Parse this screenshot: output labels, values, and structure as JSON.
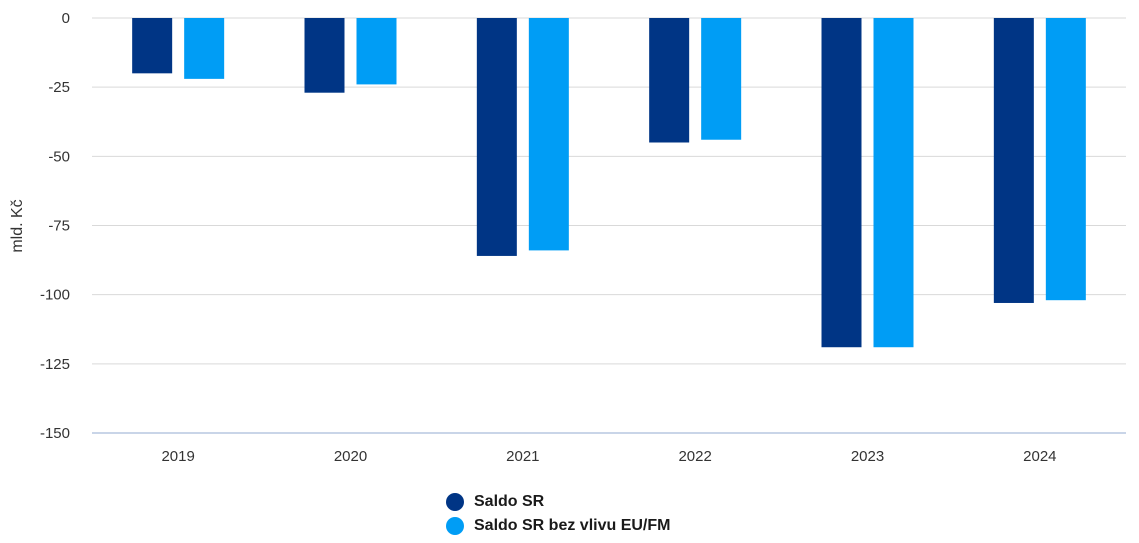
{
  "chart_data": {
    "type": "bar",
    "ylabel": "mld. Kč",
    "xlabel": "",
    "title": "",
    "ylim": [
      -150,
      0
    ],
    "yticks": [
      0,
      -25,
      -50,
      -75,
      -100,
      -125,
      -150
    ],
    "grid": true,
    "legend_position": "bottom-center",
    "categories": [
      "2019",
      "2020",
      "2021",
      "2022",
      "2023",
      "2024"
    ],
    "series": [
      {
        "name": "Saldo SR",
        "color": "#003585",
        "values": [
          -20,
          -27,
          -86,
          -45,
          -119,
          -103
        ]
      },
      {
        "name": "Saldo SR bez vlivu EU/FM",
        "color": "#009df5",
        "values": [
          -22,
          -24,
          -84,
          -44,
          -119,
          -102
        ]
      }
    ]
  }
}
